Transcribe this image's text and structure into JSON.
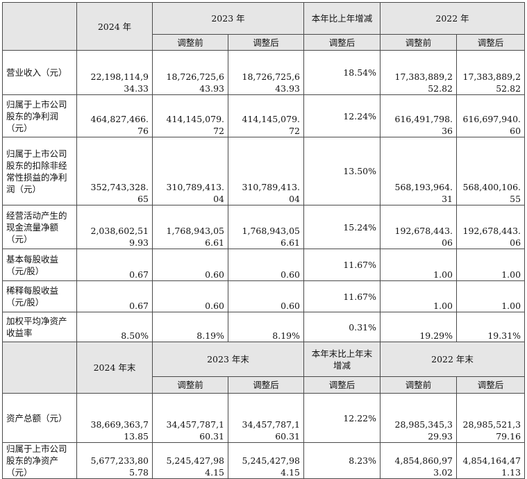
{
  "header1": {
    "corner": "",
    "col_2024": "2024 年",
    "col_2023": "2023 年",
    "col_change": "本年比上年增减",
    "col_2022": "2022 年",
    "sub_before": "调整前",
    "sub_after": "调整后",
    "sub_change_after": "调整后"
  },
  "rows1": [
    {
      "label": "营业收入（元）",
      "v2024": [
        "22,198,114,9",
        "34.33"
      ],
      "v2023a": [
        "18,726,725,6",
        "43.93"
      ],
      "v2023b": [
        "18,726,725,6",
        "43.93"
      ],
      "change": "18.54%",
      "v2022a": [
        "17,383,889,2",
        "52.82"
      ],
      "v2022b": [
        "17,383,889,2",
        "52.82"
      ]
    },
    {
      "label": "归属于上市公司股东的净利润（元）",
      "v2024": [
        "464,827,466.",
        "76"
      ],
      "v2023a": [
        "414,145,079.",
        "72"
      ],
      "v2023b": [
        "414,145,079.",
        "72"
      ],
      "change": "12.24%",
      "v2022a": [
        "616,491,798.",
        "36"
      ],
      "v2022b": [
        "616,697,940.",
        "60"
      ]
    },
    {
      "label": "归属于上市公司股东的扣除非经常性损益的净利润（元）",
      "v2024": [
        "352,743,328.",
        "65"
      ],
      "v2023a": [
        "310,789,413.",
        "04"
      ],
      "v2023b": [
        "310,789,413.",
        "04"
      ],
      "change": "13.50%",
      "v2022a": [
        "568,193,964.",
        "31"
      ],
      "v2022b": [
        "568,400,106.",
        "55"
      ]
    },
    {
      "label": "经营活动产生的现金流量净额（元）",
      "v2024": [
        "2,038,602,51",
        "9.93"
      ],
      "v2023a": [
        "1,768,943,05",
        "6.61"
      ],
      "v2023b": [
        "1,768,943,05",
        "6.61"
      ],
      "change": "15.24%",
      "v2022a": [
        "192,678,443.",
        "06"
      ],
      "v2022b": [
        "192,678,443.",
        "06"
      ]
    },
    {
      "label": "基本每股收益（元/股）",
      "v2024": [
        "0.67"
      ],
      "v2023a": [
        "0.60"
      ],
      "v2023b": [
        "0.60"
      ],
      "change": "11.67%",
      "v2022a": [
        "1.00"
      ],
      "v2022b": [
        "1.00"
      ]
    },
    {
      "label": "稀释每股收益（元/股）",
      "v2024": [
        "0.67"
      ],
      "v2023a": [
        "0.60"
      ],
      "v2023b": [
        "0.60"
      ],
      "change": "11.67%",
      "v2022a": [
        "1.00"
      ],
      "v2022b": [
        "1.00"
      ]
    },
    {
      "label": "加权平均净资产收益率",
      "v2024": [
        "8.50%"
      ],
      "v2023a": [
        "8.19%"
      ],
      "v2023b": [
        "8.19%"
      ],
      "change": "0.31%",
      "v2022a": [
        "19.29%"
      ],
      "v2022b": [
        "19.31%"
      ]
    }
  ],
  "header2": {
    "corner": "",
    "col_2024": "2024 年末",
    "col_2023": "2023 年末",
    "col_change": "本年末比上年末增减",
    "col_2022": "2022 年末",
    "sub_before": "调整前",
    "sub_after": "调整后",
    "sub_change_after": "调整后"
  },
  "rows2": [
    {
      "label": "资产总额（元）",
      "v2024": [
        "38,669,363,7",
        "13.85"
      ],
      "v2023a": [
        "34,457,787,1",
        "60.31"
      ],
      "v2023b": [
        "34,457,787,1",
        "60.31"
      ],
      "change": "12.22%",
      "v2022a": [
        "28,985,345,3",
        "29.93"
      ],
      "v2022b": [
        "28,985,521,3",
        "79.16"
      ]
    },
    {
      "label": "归属于上市公司股东的净资产（元）",
      "v2024": [
        "5,677,233,80",
        "5.78"
      ],
      "v2023a": [
        "5,245,427,98",
        "4.15"
      ],
      "v2023b": [
        "5,245,427,98",
        "4.15"
      ],
      "change": "8.23%",
      "v2022a": [
        "4,854,860,97",
        "3.02"
      ],
      "v2022b": [
        "4,854,164,47",
        "1.13"
      ]
    }
  ],
  "colors": {
    "header_bg": "#e6e6e6",
    "border": "#4a4a4a"
  }
}
